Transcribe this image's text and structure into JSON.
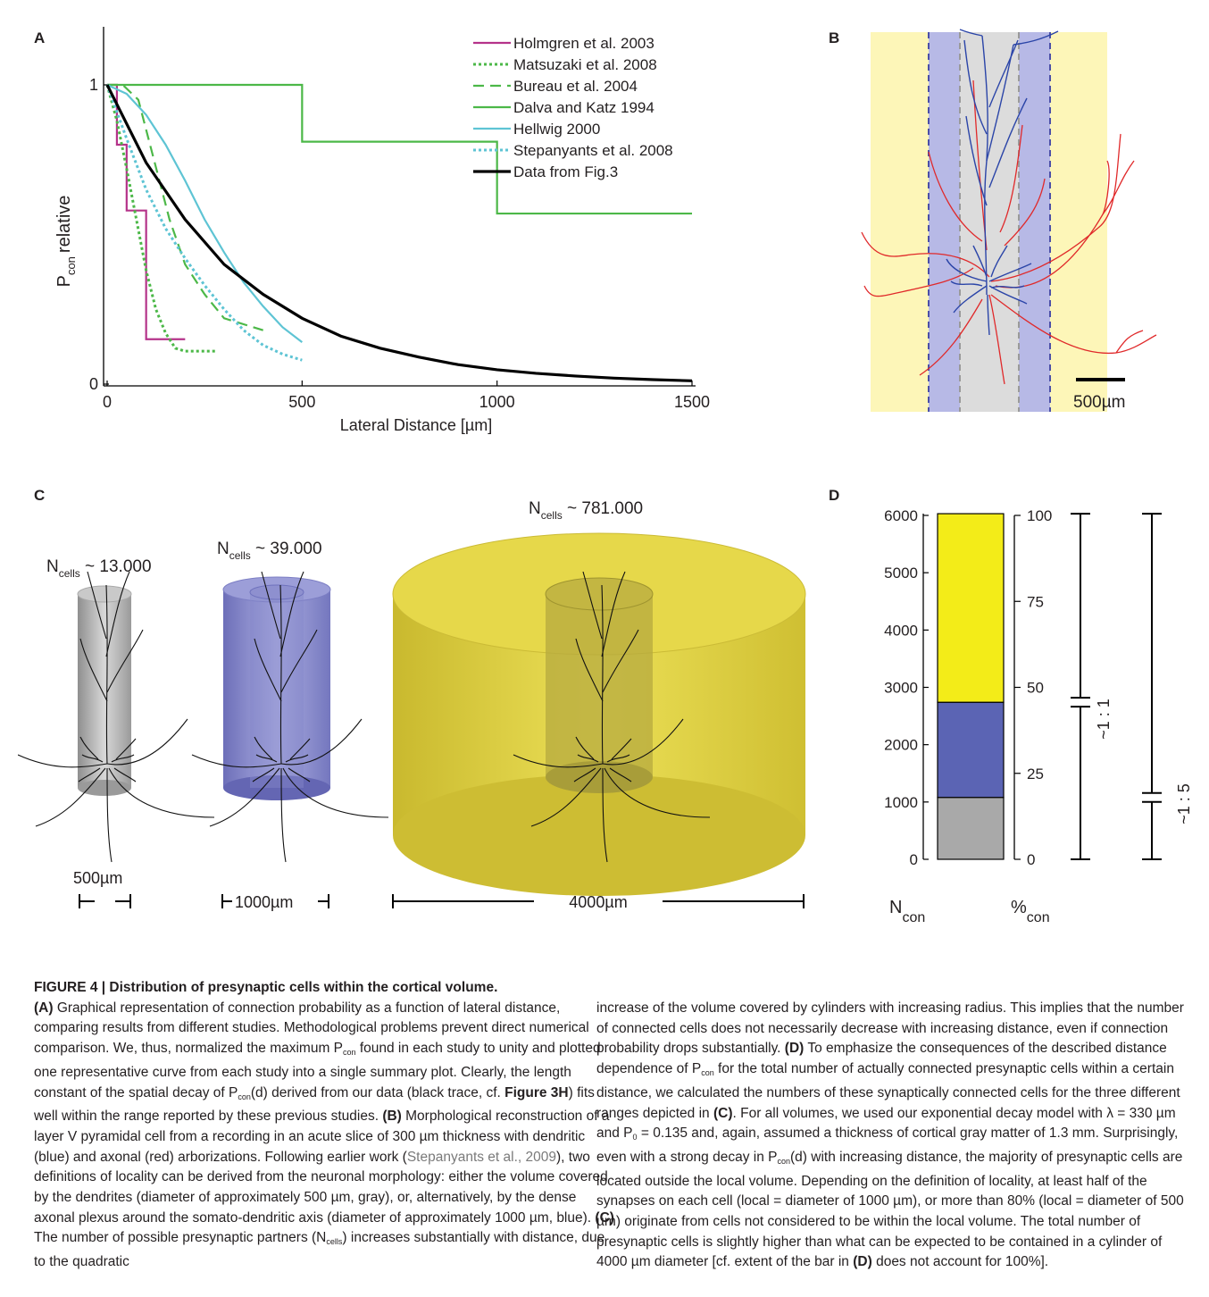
{
  "panels": {
    "A": "A",
    "B": "B",
    "C": "C",
    "D": "D"
  },
  "chart_data": [
    {
      "panel": "A",
      "type": "line",
      "ylabel_main": "P",
      "ylabel_sub": "con",
      "ylabel_rest": "relative",
      "xlabel": "Lateral Distance [µm]",
      "xlim": [
        0,
        1500
      ],
      "ylim": [
        0,
        1
      ],
      "xticks": [
        0,
        500,
        1000,
        1500
      ],
      "yticks": [
        0,
        1
      ],
      "series": [
        {
          "name": "Holmgren et al. 2003",
          "color": "#b5338a",
          "dash": "solid",
          "x": [
            0,
            25,
            25,
            50,
            50,
            100,
            100,
            200
          ],
          "y": [
            1,
            1,
            0.8,
            0.8,
            0.58,
            0.58,
            0.15,
            0.15
          ]
        },
        {
          "name": "Matsuzaki et al. 2008",
          "color": "#4cb848",
          "dash": "dot",
          "x": [
            0,
            25,
            50,
            75,
            100,
            125,
            150,
            175,
            200,
            280
          ],
          "y": [
            1,
            0.88,
            0.72,
            0.55,
            0.38,
            0.25,
            0.17,
            0.12,
            0.11,
            0.11
          ]
        },
        {
          "name": "Bureau et al. 2004",
          "color": "#4cb848",
          "dash": "dash",
          "x": [
            0,
            40,
            80,
            120,
            160,
            200,
            250,
            300,
            350,
            400
          ],
          "y": [
            1,
            1,
            0.95,
            0.75,
            0.55,
            0.4,
            0.3,
            0.22,
            0.2,
            0.18
          ]
        },
        {
          "name": "Dalva and Katz 1994",
          "color": "#4cb848",
          "dash": "solid",
          "x": [
            0,
            500,
            500,
            1000,
            1000,
            1500
          ],
          "y": [
            1,
            1,
            0.81,
            0.81,
            0.57,
            0.57
          ]
        },
        {
          "name": "Hellwig 2000",
          "color": "#5ec4d4",
          "dash": "solid",
          "x": [
            0,
            50,
            100,
            150,
            200,
            250,
            300,
            350,
            400,
            450,
            500
          ],
          "y": [
            1,
            0.97,
            0.9,
            0.8,
            0.68,
            0.55,
            0.44,
            0.34,
            0.26,
            0.19,
            0.14
          ]
        },
        {
          "name": "Stepanyants et al. 2008",
          "color": "#5ec4d4",
          "dash": "dot",
          "x": [
            0,
            50,
            100,
            150,
            200,
            250,
            300,
            350,
            400,
            450,
            500
          ],
          "y": [
            1,
            0.82,
            0.65,
            0.52,
            0.42,
            0.33,
            0.25,
            0.18,
            0.13,
            0.1,
            0.08
          ]
        },
        {
          "name": "Data from Fig.3",
          "color": "#000000",
          "dash": "solid",
          "x": [
            0,
            100,
            200,
            300,
            400,
            500,
            600,
            700,
            800,
            900,
            1000,
            1100,
            1200,
            1300,
            1400,
            1500
          ],
          "y": [
            1,
            0.74,
            0.55,
            0.4,
            0.3,
            0.22,
            0.16,
            0.12,
            0.09,
            0.065,
            0.048,
            0.036,
            0.027,
            0.02,
            0.015,
            0.011
          ]
        }
      ]
    },
    {
      "panel": "D",
      "type": "bar",
      "stacked": true,
      "left_axis_label_main": "N",
      "left_axis_label_sub": "con",
      "right_axis_label_main": "%",
      "right_axis_label_sub": "con",
      "left_ylim": [
        0,
        6000
      ],
      "left_ticks": [
        0,
        1000,
        2000,
        3000,
        4000,
        5000,
        6000
      ],
      "right_ylim": [
        0,
        100
      ],
      "right_ticks": [
        0,
        25,
        50,
        75,
        100
      ],
      "segments": [
        {
          "label": "gray",
          "color": "#a9a9a9",
          "from": 0,
          "to": 1080
        },
        {
          "label": "blue",
          "color": "#5b64b4",
          "from": 1080,
          "to": 2740
        },
        {
          "label": "yellow",
          "color": "#f3ec18",
          "from": 2740,
          "to": 6030
        }
      ],
      "ratio_labels": [
        "~1 : 1",
        "~1 : 5"
      ]
    }
  ],
  "panelB": {
    "scale_label": "500µm",
    "colors": {
      "yellow": "#fdf6b8",
      "blue": "#b7b9e6",
      "gray": "#dcdcdc",
      "dendrite": "#2b45a8",
      "axon": "#e0292a"
    }
  },
  "panelC": {
    "labels": [
      {
        "main": "N",
        "sub": "cells",
        "rest": " ~ 13.000"
      },
      {
        "main": "N",
        "sub": "cells",
        "rest": " ~ 39.000"
      },
      {
        "main": "N",
        "sub": "cells",
        "rest": " ~ 781.000"
      }
    ],
    "scales": [
      "500µm",
      "1000µm",
      "4000µm"
    ],
    "colors": {
      "gray": "#b5b5b5",
      "blue": "#7d80c7",
      "yellow": "#d9cb3c"
    }
  },
  "caption": {
    "title": "FIGURE 4 | Distribution of presynaptic cells within the cortical volume.",
    "left": [
      {
        "b": "(A)",
        "t": " Graphical representation of connection probability as a function of lateral distance, comparing results from different studies. Methodological problems prevent direct numerical comparison. We, thus, normalized the maximum P"
      },
      {
        "t": " found in each study to unity and plotted one representative curve from each study into a single summary plot. Clearly, the length constant of the spatial decay of P"
      },
      {
        "t": "(d) derived from our data (black trace, cf. "
      },
      {
        "b": "Figure 3H"
      },
      {
        "t": ") fits well within the range reported by these previous studies. "
      },
      {
        "b": "(B)"
      },
      {
        "t": " Morphological reconstruction of a layer V pyramidal cell from a recording in an acute slice of 300 µm thickness with dendritic (blue) and axonal (red) arborizations. Following earlier work ("
      },
      {
        "r": "Stepanyants et al., 2009"
      },
      {
        "t": "), two definitions of locality can be derived from the neuronal morphology: either the volume covered by the dendrites (diameter of approximately 500 µm, gray), or, alternatively, by the dense axonal plexus around the somato-dendritic axis (diameter of approximately 1000 µm, blue). "
      },
      {
        "b": "(C)"
      },
      {
        "t": " The number of possible presynaptic partners (N"
      },
      {
        "t": ") increases substantially with distance, due to the quadratic"
      }
    ],
    "right": [
      {
        "t": "increase of the volume covered by cylinders with increasing radius. This implies that the number of connected cells does not necessarily decrease with increasing distance, even if connection probability drops substantially. "
      },
      {
        "b": "(D)"
      },
      {
        "t": " To emphasize the consequences of the described distance dependence of P"
      },
      {
        "t": " for the total number of actually connected presynaptic cells within a certain distance, we calculated the numbers of these synaptically connected cells for the three different ranges depicted in "
      },
      {
        "b": "(C)"
      },
      {
        "t": ". For all volumes, we used our exponential decay model with λ = 330 µm and P"
      },
      {
        "t": " = 0.135 and, again, assumed a thickness of cortical gray matter of 1.3 mm. Surprisingly, even with a strong decay in P"
      },
      {
        "t": "(d) with increasing distance, the majority of presynaptic cells are located outside the local volume. Depending on the definition of locality, at least half of the synapses on each cell (local = diameter of 1000 µm), or more than 80% (local = diameter of 500 µm) originate from cells not considered to be within the local volume. The total number of presynaptic cells is slightly higher than what can be expected to be contained in a cylinder of 4000 µm diameter [cf. extent of the bar in "
      },
      {
        "b": "(D)"
      },
      {
        "t": " does not account for 100%]."
      }
    ],
    "subs": {
      "con": "con",
      "cells": "cells",
      "zero": "0"
    }
  }
}
